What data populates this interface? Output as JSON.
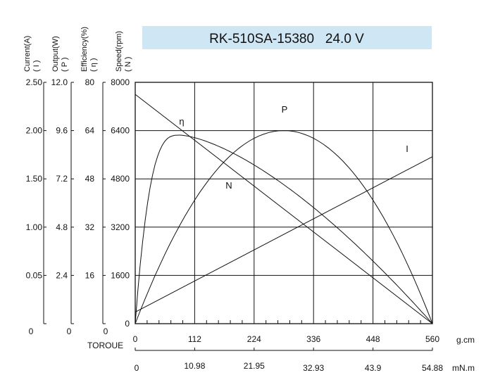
{
  "chart_data": {
    "type": "line",
    "title": "RK-510SA-15380   24.0 V",
    "axes": {
      "current": {
        "label": "Current(A)",
        "symbol": "( I )",
        "ticks": [
          "2.50",
          "2.00",
          "1.50",
          "1.00",
          "0.05",
          "0"
        ],
        "range": [
          0,
          2.5
        ]
      },
      "output": {
        "label": "Output(W)",
        "symbol": "( P )",
        "ticks": [
          "12.0",
          "9.6",
          "7.2",
          "4.8",
          "2.4",
          "0"
        ],
        "range": [
          0,
          12.0
        ]
      },
      "efficiency": {
        "label": "Efficiency(%)",
        "symbol": "( η )",
        "ticks": [
          "80",
          "64",
          "48",
          "32",
          "16",
          "0"
        ],
        "range": [
          0,
          80
        ]
      },
      "speed": {
        "label": "Speed(rpm)",
        "symbol": "( N )",
        "ticks": [
          "8000",
          "6400",
          "4800",
          "3200",
          "1600",
          "0"
        ],
        "range": [
          0,
          8000
        ]
      },
      "torque_gcm": {
        "label": "TOROUE",
        "unit": "g.cm",
        "ticks": [
          "0",
          "112",
          "224",
          "336",
          "448",
          "560"
        ],
        "range": [
          0,
          560
        ]
      },
      "torque_mnm": {
        "unit": "mN.m",
        "ticks": [
          "0",
          "10.98",
          "21.95",
          "32.93",
          "43.9",
          "54.88"
        ],
        "range": [
          0,
          54.88
        ]
      }
    },
    "series": [
      {
        "name": "N",
        "axis": "speed",
        "x": [
          0,
          560
        ],
        "y": [
          7600,
          0
        ]
      },
      {
        "name": "I",
        "axis": "current",
        "x": [
          0,
          560
        ],
        "y": [
          0.12,
          1.73
        ]
      },
      {
        "name": "P",
        "axis": "output",
        "peak_x": 280,
        "peak_y": 9.6,
        "x": [
          0,
          560
        ],
        "y": [
          0,
          0
        ]
      },
      {
        "name": "η",
        "axis": "efficiency",
        "peak_x": 85,
        "peak_y": 62.5,
        "x": [
          0,
          560
        ],
        "y": [
          0,
          0
        ]
      }
    ],
    "grid": true
  }
}
